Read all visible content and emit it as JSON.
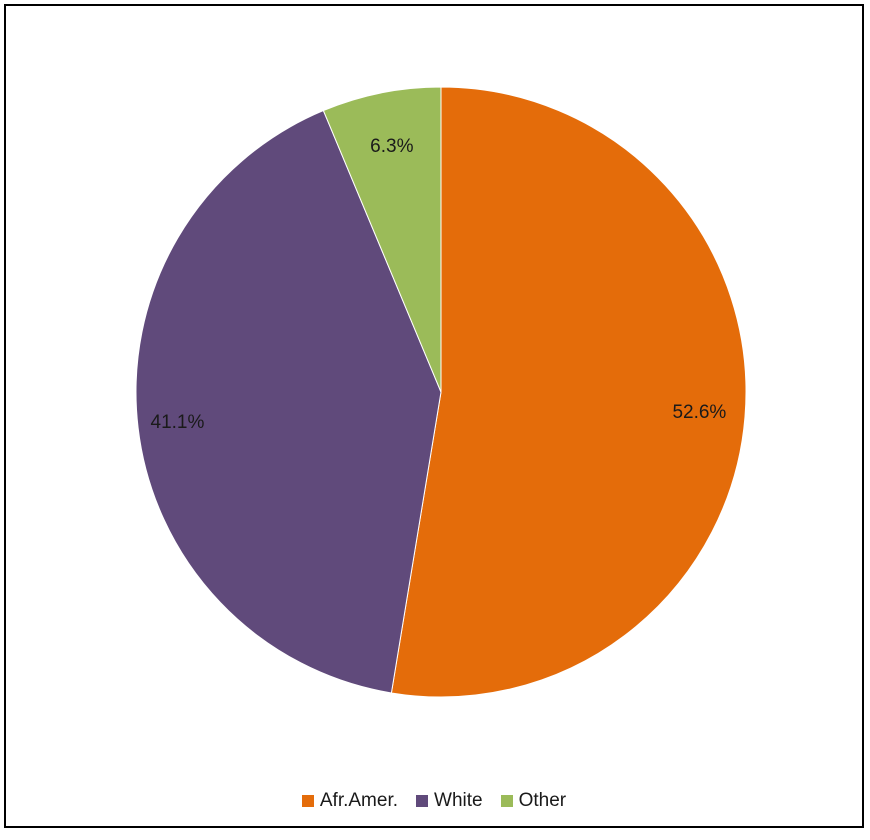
{
  "chart_data": {
    "type": "pie",
    "categories": [
      "Afr.Amer.",
      "White",
      "Other"
    ],
    "values": [
      52.6,
      41.1,
      6.3
    ],
    "data_labels": [
      "52.6%",
      "41.1%",
      "6.3%"
    ],
    "colors": [
      "#E46C0A",
      "#604A7B",
      "#9BBB59"
    ],
    "start_angle_deg": 0,
    "direction": "clockwise",
    "title": "",
    "legend_position": "bottom"
  }
}
